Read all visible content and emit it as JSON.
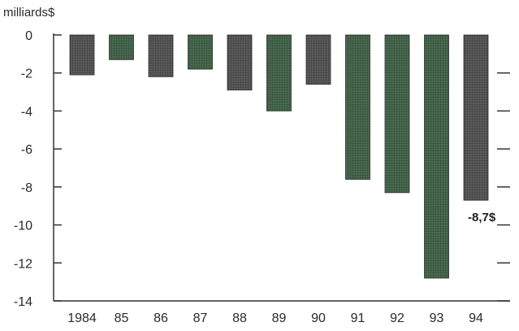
{
  "chart_data": {
    "type": "bar",
    "title": "",
    "ylabel": "milliards$",
    "xlabel": "",
    "categories": [
      "1984",
      "85",
      "86",
      "87",
      "88",
      "89",
      "90",
      "91",
      "92",
      "93",
      "94"
    ],
    "values": [
      -2.1,
      -1.3,
      -2.2,
      -1.8,
      -2.9,
      -4.0,
      -2.6,
      -7.6,
      -8.3,
      -12.8,
      -8.7
    ],
    "ylim": [
      -14,
      0
    ],
    "yticks": [
      "0",
      "-2",
      "-4",
      "-6",
      "-8",
      "-10",
      "-12",
      "-14"
    ],
    "data_labels": [
      {
        "index": 10,
        "text": "-8,7$"
      }
    ],
    "grid": false,
    "colors": {
      "dark_bar": "#3f3f3f",
      "mid_bar": "#5a5a5a",
      "green_tint": "#2f5c36",
      "axis": "#333333"
    }
  }
}
